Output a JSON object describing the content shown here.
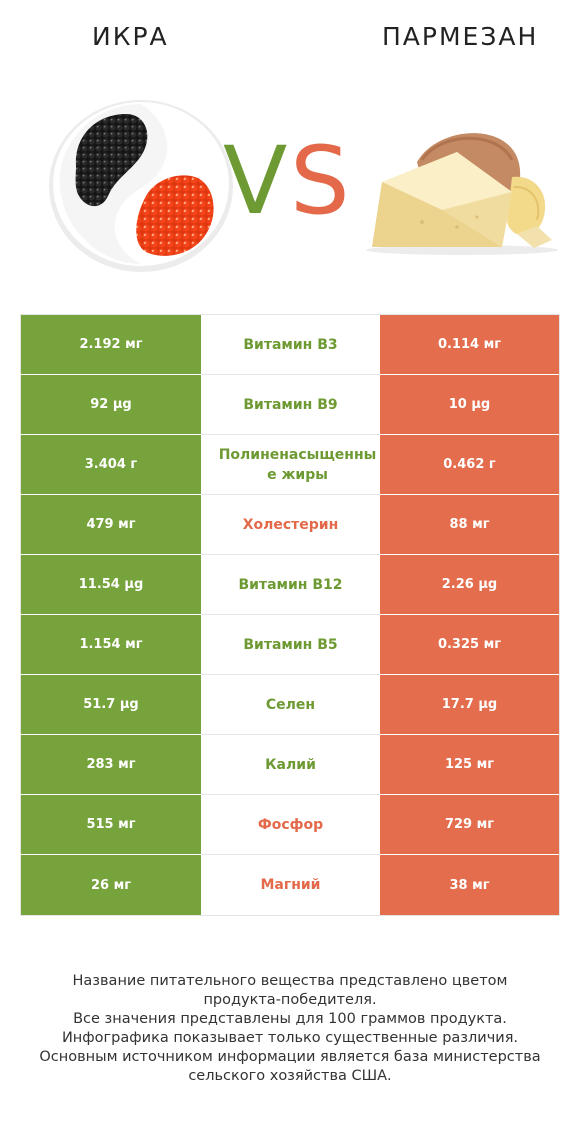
{
  "header": {
    "left_title": "ИКРА",
    "right_title": "ПАРМЕЗАН",
    "vs_v": "V",
    "vs_s": "S"
  },
  "colors": {
    "winner_left": "#76a33c",
    "winner_right": "#e36d4d",
    "label_left": "#6d9a32",
    "label_right": "#e3694a"
  },
  "rows": [
    {
      "nutrient": "Витамин B3",
      "left": "2.192 мг",
      "right": "0.114 мг",
      "winner": "left"
    },
    {
      "nutrient": "Витамин B9",
      "left": "92 µg",
      "right": "10 µg",
      "winner": "left"
    },
    {
      "nutrient": "Полиненасыщенные жиры",
      "left": "3.404 г",
      "right": "0.462 г",
      "winner": "left"
    },
    {
      "nutrient": "Холестерин",
      "left": "479 мг",
      "right": "88 мг",
      "winner": "right"
    },
    {
      "nutrient": "Витамин B12",
      "left": "11.54 µg",
      "right": "2.26 µg",
      "winner": "left"
    },
    {
      "nutrient": "Витамин B5",
      "left": "1.154 мг",
      "right": "0.325 мг",
      "winner": "left"
    },
    {
      "nutrient": "Селен",
      "left": "51.7 µg",
      "right": "17.7 µg",
      "winner": "left"
    },
    {
      "nutrient": "Калий",
      "left": "283 мг",
      "right": "125 мг",
      "winner": "left"
    },
    {
      "nutrient": "Фосфор",
      "left": "515 мг",
      "right": "729 мг",
      "winner": "right"
    },
    {
      "nutrient": "Магний",
      "left": "26 мг",
      "right": "38 мг",
      "winner": "right"
    }
  ],
  "footer": {
    "line1": "Название питательного вещества представлено цветом",
    "line2": "продукта-победителя.",
    "line3": "Все значения представлены для 100 граммов продукта.",
    "line4": "Инфографика показывает только существенные различия.",
    "line5": "Основным источником информации является база министерства",
    "line6": "сельского хозяйства США."
  }
}
